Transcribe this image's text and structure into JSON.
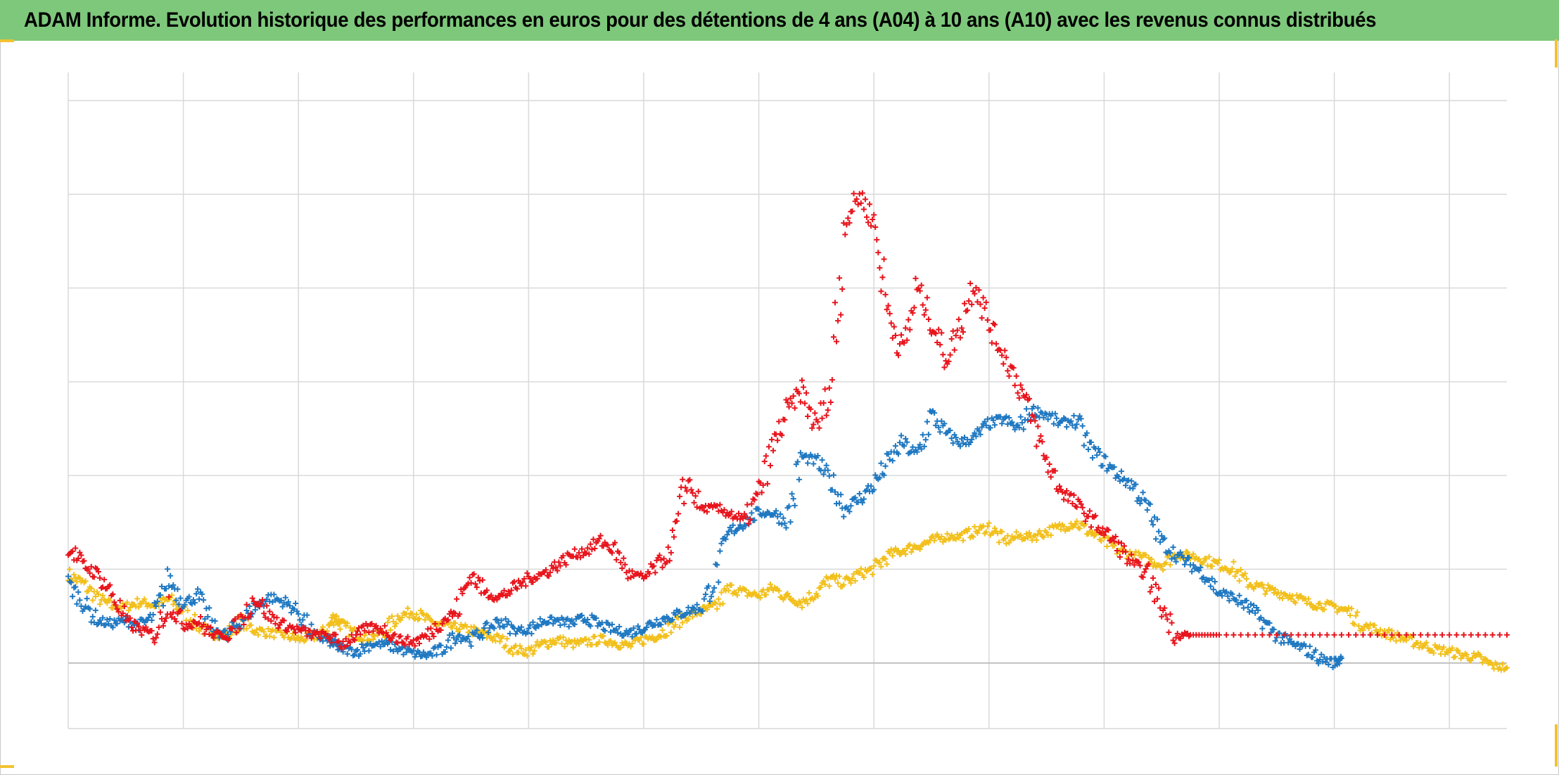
{
  "title": "ADAM Informe. Evolution historique des performances en euros pour des détentions de 4 ans (A04) à 10 ans (A10) avec les revenus connus distribués",
  "colors": {
    "title_bar": "#7ec87b",
    "corner_marks": "#f2c230",
    "grid": "#d9d9d9",
    "baseline": "#bfbfbf"
  },
  "chart_data": {
    "type": "scatter",
    "marker": "plus",
    "grid": true,
    "legend": "none",
    "xlabel": "",
    "ylabel": "",
    "xlim": [
      0,
      100
    ],
    "ylim": [
      -0.7,
      6.3
    ],
    "baseline_y": 0,
    "series": [
      {
        "color": "#f2c01c",
        "points": [
          [
            0,
            0.95
          ],
          [
            1,
            0.85
          ],
          [
            2,
            0.7
          ],
          [
            3,
            0.6
          ],
          [
            4,
            0.6
          ],
          [
            5,
            0.65
          ],
          [
            6,
            0.62
          ],
          [
            7,
            0.68
          ],
          [
            8,
            0.55
          ],
          [
            9,
            0.4
          ],
          [
            10,
            0.3
          ],
          [
            11,
            0.3
          ],
          [
            12,
            0.45
          ],
          [
            13,
            0.35
          ],
          [
            14,
            0.32
          ],
          [
            15,
            0.3
          ],
          [
            16,
            0.25
          ],
          [
            17,
            0.28
          ],
          [
            18,
            0.35
          ],
          [
            18.5,
            0.5
          ],
          [
            19,
            0.4
          ],
          [
            20,
            0.3
          ],
          [
            21,
            0.27
          ],
          [
            22,
            0.35
          ],
          [
            23,
            0.5
          ],
          [
            24,
            0.55
          ],
          [
            25,
            0.45
          ],
          [
            26,
            0.4
          ],
          [
            27,
            0.38
          ],
          [
            28,
            0.35
          ],
          [
            29,
            0.3
          ],
          [
            30,
            0.25
          ],
          [
            31,
            0.15
          ],
          [
            32,
            0.12
          ],
          [
            33,
            0.2
          ],
          [
            34,
            0.25
          ],
          [
            35,
            0.2
          ],
          [
            36,
            0.22
          ],
          [
            37,
            0.25
          ],
          [
            38,
            0.22
          ],
          [
            39,
            0.18
          ],
          [
            40,
            0.25
          ],
          [
            41,
            0.3
          ],
          [
            42,
            0.4
          ],
          [
            43,
            0.5
          ],
          [
            44,
            0.55
          ],
          [
            45,
            0.6
          ],
          [
            46,
            0.8
          ],
          [
            47,
            0.75
          ],
          [
            48,
            0.72
          ],
          [
            49,
            0.8
          ],
          [
            50,
            0.7
          ],
          [
            51,
            0.65
          ],
          [
            52,
            0.75
          ],
          [
            53,
            0.9
          ],
          [
            54,
            0.85
          ],
          [
            55,
            0.95
          ],
          [
            56,
            1.0
          ],
          [
            57,
            1.15
          ],
          [
            58,
            1.2
          ],
          [
            59,
            1.25
          ],
          [
            60,
            1.3
          ],
          [
            61,
            1.35
          ],
          [
            62,
            1.35
          ],
          [
            63,
            1.4
          ],
          [
            64,
            1.45
          ],
          [
            65,
            1.3
          ],
          [
            66,
            1.35
          ],
          [
            67,
            1.35
          ],
          [
            68,
            1.4
          ],
          [
            69,
            1.45
          ],
          [
            70,
            1.5
          ],
          [
            71,
            1.4
          ],
          [
            72,
            1.3
          ],
          [
            73,
            1.2
          ],
          [
            74,
            1.15
          ],
          [
            75,
            1.1
          ],
          [
            76,
            1.05
          ],
          [
            77,
            1.15
          ],
          [
            78,
            1.15
          ],
          [
            79,
            1.1
          ],
          [
            80,
            1.05
          ],
          [
            81,
            1.0
          ],
          [
            82,
            0.85
          ],
          [
            83,
            0.8
          ],
          [
            84,
            0.75
          ],
          [
            85,
            0.72
          ],
          [
            86,
            0.65
          ],
          [
            87,
            0.62
          ],
          [
            88,
            0.6
          ],
          [
            89,
            0.55
          ],
          [
            90,
            0.4
          ],
          [
            91,
            0.35
          ],
          [
            92,
            0.3
          ],
          [
            93,
            0.25
          ],
          [
            94,
            0.2
          ],
          [
            95,
            0.15
          ],
          [
            96,
            0.12
          ],
          [
            97,
            0.08
          ],
          [
            98,
            0.05
          ],
          [
            99,
            -0.03
          ],
          [
            100,
            -0.05
          ]
        ]
      },
      {
        "color": "#1f78c1",
        "points": [
          [
            0,
            0.85
          ],
          [
            1,
            0.65
          ],
          [
            2,
            0.45
          ],
          [
            3,
            0.42
          ],
          [
            4,
            0.45
          ],
          [
            5,
            0.4
          ],
          [
            6,
            0.5
          ],
          [
            7,
            0.9
          ],
          [
            8,
            0.65
          ],
          [
            9,
            0.7
          ],
          [
            10,
            0.4
          ],
          [
            11,
            0.28
          ],
          [
            12,
            0.45
          ],
          [
            13,
            0.6
          ],
          [
            14,
            0.7
          ],
          [
            15,
            0.65
          ],
          [
            16,
            0.55
          ],
          [
            17,
            0.3
          ],
          [
            18,
            0.25
          ],
          [
            18.5,
            0.2
          ],
          [
            19,
            0.15
          ],
          [
            20,
            0.12
          ],
          [
            21,
            0.2
          ],
          [
            22,
            0.2
          ],
          [
            23,
            0.15
          ],
          [
            24,
            0.1
          ],
          [
            25,
            0.08
          ],
          [
            26,
            0.15
          ],
          [
            27,
            0.3
          ],
          [
            28,
            0.25
          ],
          [
            29,
            0.35
          ],
          [
            30,
            0.45
          ],
          [
            31,
            0.35
          ],
          [
            32,
            0.35
          ],
          [
            33,
            0.45
          ],
          [
            34,
            0.45
          ],
          [
            35,
            0.42
          ],
          [
            36,
            0.48
          ],
          [
            37,
            0.4
          ],
          [
            38,
            0.35
          ],
          [
            39,
            0.32
          ],
          [
            40,
            0.38
          ],
          [
            41,
            0.45
          ],
          [
            42,
            0.5
          ],
          [
            43,
            0.55
          ],
          [
            44,
            0.6
          ],
          [
            45,
            0.9
          ],
          [
            46,
            1.4
          ],
          [
            47,
            1.5
          ],
          [
            48,
            1.6
          ],
          [
            49,
            1.6
          ],
          [
            50,
            1.5
          ],
          [
            51,
            2.2
          ],
          [
            52,
            2.15
          ],
          [
            53,
            1.95
          ],
          [
            54,
            1.65
          ],
          [
            55,
            1.75
          ],
          [
            56,
            1.9
          ],
          [
            57,
            2.15
          ],
          [
            58,
            2.35
          ],
          [
            59,
            2.2
          ],
          [
            60,
            2.65
          ],
          [
            61,
            2.45
          ],
          [
            62,
            2.35
          ],
          [
            63,
            2.4
          ],
          [
            64,
            2.55
          ],
          [
            65,
            2.6
          ],
          [
            66,
            2.5
          ],
          [
            67,
            2.7
          ],
          [
            68,
            2.65
          ],
          [
            69,
            2.55
          ],
          [
            70,
            2.6
          ],
          [
            71,
            2.3
          ],
          [
            72,
            2.15
          ],
          [
            73,
            2.0
          ],
          [
            74,
            1.9
          ],
          [
            75,
            1.65
          ],
          [
            76,
            1.3
          ],
          [
            77,
            1.15
          ],
          [
            78,
            1.05
          ],
          [
            79,
            0.95
          ],
          [
            80,
            0.75
          ],
          [
            81,
            0.7
          ],
          [
            82,
            0.6
          ],
          [
            83,
            0.45
          ],
          [
            84,
            0.3
          ],
          [
            85,
            0.2
          ],
          [
            86,
            0.15
          ],
          [
            87,
            0.05
          ],
          [
            88,
            0.0
          ],
          [
            88.5,
            0.05
          ]
        ]
      },
      {
        "color": "#e8141c",
        "points": [
          [
            0,
            1.25
          ],
          [
            1,
            1.05
          ],
          [
            2,
            0.95
          ],
          [
            3,
            0.75
          ],
          [
            4,
            0.45
          ],
          [
            5,
            0.35
          ],
          [
            6,
            0.3
          ],
          [
            7,
            0.65
          ],
          [
            8,
            0.4
          ],
          [
            9,
            0.45
          ],
          [
            10,
            0.3
          ],
          [
            11,
            0.3
          ],
          [
            12,
            0.45
          ],
          [
            13,
            0.7
          ],
          [
            14,
            0.5
          ],
          [
            15,
            0.4
          ],
          [
            16,
            0.35
          ],
          [
            17,
            0.3
          ],
          [
            18,
            0.3
          ],
          [
            19,
            0.2
          ],
          [
            20,
            0.3
          ],
          [
            21,
            0.38
          ],
          [
            22,
            0.35
          ],
          [
            23,
            0.25
          ],
          [
            24,
            0.22
          ],
          [
            25,
            0.3
          ],
          [
            26,
            0.45
          ],
          [
            27,
            0.55
          ],
          [
            28,
            0.95
          ],
          [
            29,
            0.75
          ],
          [
            30,
            0.7
          ],
          [
            31,
            0.8
          ],
          [
            32,
            0.9
          ],
          [
            33,
            0.95
          ],
          [
            34,
            1.05
          ],
          [
            35,
            1.15
          ],
          [
            36,
            1.2
          ],
          [
            37,
            1.3
          ],
          [
            38,
            1.2
          ],
          [
            39,
            0.95
          ],
          [
            40,
            0.9
          ],
          [
            41,
            1.05
          ],
          [
            42,
            1.2
          ],
          [
            43,
            1.95
          ],
          [
            44,
            1.65
          ],
          [
            45,
            1.65
          ],
          [
            46,
            1.6
          ],
          [
            47,
            1.5
          ],
          [
            48,
            1.8
          ],
          [
            49,
            2.3
          ],
          [
            50,
            2.7
          ],
          [
            51,
            2.9
          ],
          [
            52,
            2.5
          ],
          [
            53,
            2.95
          ],
          [
            54,
            4.7
          ],
          [
            55,
            5.0
          ],
          [
            56,
            4.7
          ],
          [
            57,
            3.75
          ],
          [
            58,
            3.3
          ],
          [
            59,
            4.0
          ],
          [
            60,
            3.65
          ],
          [
            61,
            3.25
          ],
          [
            62,
            3.6
          ],
          [
            63,
            4.1
          ],
          [
            64,
            3.6
          ],
          [
            65,
            3.3
          ],
          [
            66,
            3.0
          ],
          [
            67,
            2.6
          ],
          [
            68,
            2.15
          ],
          [
            69,
            1.85
          ],
          [
            70,
            1.7
          ],
          [
            71,
            1.55
          ],
          [
            72,
            1.4
          ],
          [
            73,
            1.25
          ],
          [
            74,
            1.05
          ],
          [
            75,
            0.95
          ],
          [
            76,
            0.6
          ],
          [
            77,
            0.3
          ],
          [
            78,
            0.3
          ],
          [
            80,
            0.3
          ],
          [
            85,
            0.3
          ],
          [
            90,
            0.3
          ],
          [
            95,
            0.3
          ],
          [
            100,
            0.3
          ]
        ]
      }
    ]
  }
}
